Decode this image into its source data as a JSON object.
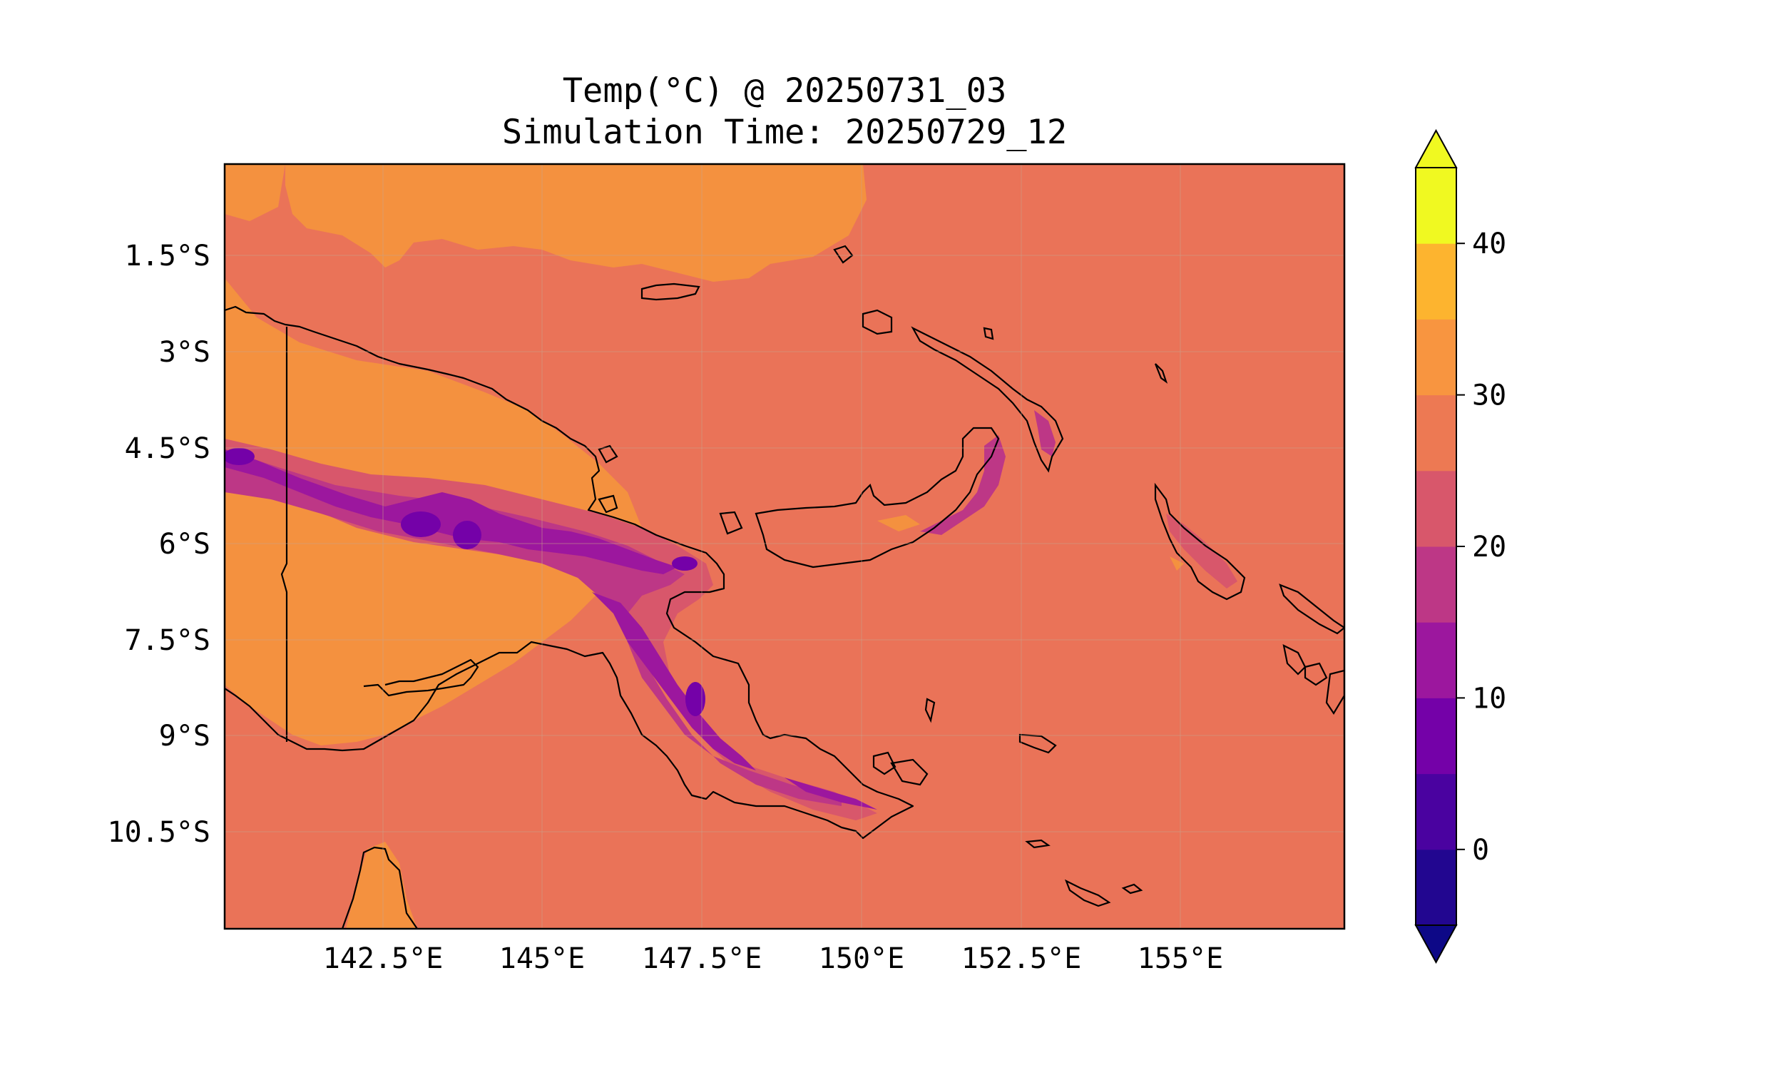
{
  "title": {
    "line1": "Temp(°C) @ 20250731_03",
    "line2": "Simulation Time: 20250729_12"
  },
  "map": {
    "projection": "PlateCarree",
    "extent_lon": [
      140.0,
      157.5
    ],
    "extent_lat": [
      -12.0,
      -0.1
    ],
    "field": "2m temperature (°C)",
    "gridlines": true
  },
  "axes": {
    "x_ticks": [
      "142.5°E",
      "145°E",
      "147.5°E",
      "150°E",
      "152.5°E",
      "155°E"
    ],
    "y_ticks": [
      "1.5°S",
      "3°S",
      "4.5°S",
      "6°S",
      "7.5°S",
      "9°S",
      "10.5°S"
    ]
  },
  "colorbar": {
    "colormap": "plasma",
    "levels": [
      -5,
      0,
      5,
      10,
      15,
      20,
      25,
      30,
      35,
      40,
      45
    ],
    "tick_labels": [
      "0",
      "10",
      "20",
      "30",
      "40"
    ],
    "extend": "both",
    "colors": [
      "#220690",
      "#4a02a0",
      "#7401a8",
      "#9c179e",
      "#bd3786",
      "#d8576b",
      "#ed7953",
      "#f89540",
      "#fdb42f",
      "#f0f921"
    ],
    "under_color": "#0d0887",
    "over_color": "#f0f921"
  }
}
